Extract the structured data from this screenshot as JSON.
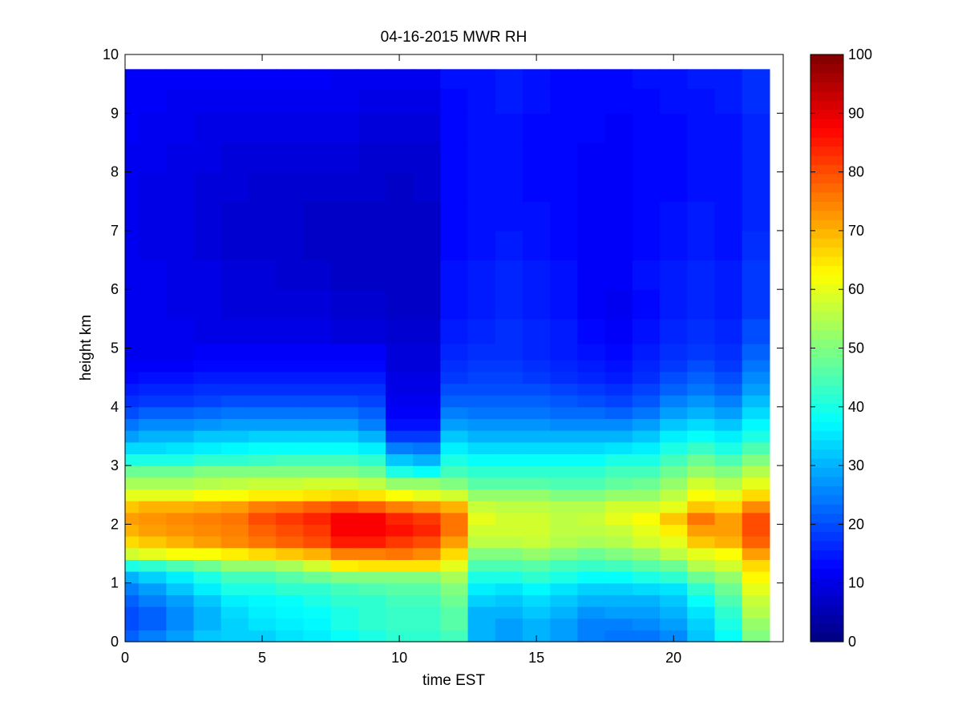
{
  "chart_data": {
    "type": "heatmap",
    "title": "04-16-2015 MWR RH",
    "xlabel": "time EST",
    "ylabel": "height km",
    "xlim": [
      0,
      24
    ],
    "ylim": [
      0,
      10
    ],
    "xticks": [
      0,
      5,
      10,
      15,
      20
    ],
    "yticks": [
      0,
      1,
      2,
      3,
      4,
      5,
      6,
      7,
      8,
      9,
      10
    ],
    "colorbar": {
      "colormap": "jet",
      "range": [
        0,
        100
      ],
      "ticks": [
        0,
        10,
        20,
        30,
        40,
        50,
        60,
        70,
        80,
        90,
        100
      ]
    },
    "time_hours": [
      0,
      1,
      2,
      3,
      4,
      5,
      6,
      7,
      8,
      9,
      10,
      11,
      12,
      13,
      14,
      15,
      16,
      17,
      18,
      19,
      20,
      21,
      22,
      23
    ],
    "data_extent": {
      "x": [
        0,
        23.5
      ],
      "y": [
        0,
        9.75
      ]
    },
    "heights_km": [
      0.1,
      0.3,
      0.5,
      0.7,
      0.9,
      1.1,
      1.3,
      1.5,
      1.7,
      1.9,
      2.1,
      2.3,
      2.5,
      2.7,
      2.9,
      3.1,
      3.3,
      3.5,
      3.7,
      3.9,
      4.1,
      4.3,
      4.5,
      4.7,
      4.9,
      5.25,
      5.75,
      6.25,
      6.75,
      7.25,
      7.75,
      8.25,
      8.75,
      9.25,
      9.6
    ],
    "rh_percent": [
      [
        22,
        25,
        28,
        32,
        33,
        33,
        35,
        36,
        38,
        40,
        42,
        42,
        44,
        30,
        28,
        30,
        28,
        25,
        24,
        24,
        26,
        32,
        38,
        50
      ],
      [
        20,
        22,
        26,
        30,
        33,
        35,
        36,
        37,
        40,
        42,
        43,
        43,
        46,
        30,
        28,
        30,
        28,
        25,
        25,
        26,
        28,
        33,
        40,
        52
      ],
      [
        20,
        22,
        26,
        30,
        34,
        36,
        37,
        38,
        40,
        42,
        43,
        43,
        46,
        30,
        30,
        32,
        30,
        27,
        28,
        28,
        30,
        35,
        42,
        55
      ],
      [
        22,
        25,
        28,
        32,
        36,
        37,
        38,
        40,
        42,
        42,
        44,
        44,
        48,
        33,
        32,
        34,
        32,
        30,
        30,
        30,
        32,
        38,
        45,
        57
      ],
      [
        25,
        28,
        32,
        36,
        40,
        40,
        42,
        42,
        44,
        45,
        46,
        46,
        50,
        36,
        35,
        37,
        35,
        33,
        33,
        34,
        35,
        42,
        48,
        60
      ],
      [
        30,
        33,
        36,
        40,
        44,
        44,
        46,
        48,
        50,
        50,
        50,
        50,
        54,
        40,
        40,
        42,
        40,
        38,
        38,
        40,
        42,
        48,
        52,
        63
      ],
      [
        40,
        42,
        45,
        48,
        52,
        52,
        54,
        58,
        64,
        65,
        65,
        65,
        60,
        45,
        45,
        46,
        44,
        43,
        44,
        46,
        48,
        55,
        58,
        66
      ],
      [
        58,
        60,
        62,
        62,
        64,
        66,
        68,
        70,
        75,
        75,
        76,
        74,
        66,
        50,
        50,
        52,
        50,
        48,
        50,
        52,
        56,
        60,
        62,
        72
      ],
      [
        66,
        68,
        70,
        72,
        74,
        76,
        78,
        80,
        85,
        85,
        82,
        80,
        72,
        56,
        56,
        57,
        55,
        54,
        55,
        58,
        60,
        68,
        70,
        78
      ],
      [
        70,
        72,
        73,
        74,
        75,
        78,
        80,
        82,
        88,
        88,
        86,
        84,
        76,
        58,
        58,
        58,
        56,
        56,
        57,
        60,
        64,
        72,
        72,
        80
      ],
      [
        72,
        73,
        74,
        75,
        76,
        80,
        82,
        84,
        88,
        88,
        84,
        82,
        76,
        60,
        58,
        58,
        56,
        57,
        60,
        62,
        68,
        76,
        72,
        80
      ],
      [
        68,
        70,
        70,
        71,
        72,
        75,
        76,
        78,
        80,
        78,
        75,
        73,
        70,
        57,
        56,
        56,
        55,
        55,
        58,
        58,
        60,
        68,
        66,
        74
      ],
      [
        60,
        60,
        60,
        62,
        62,
        64,
        64,
        65,
        66,
        65,
        62,
        60,
        58,
        52,
        52,
        52,
        50,
        50,
        52,
        52,
        56,
        62,
        60,
        66
      ],
      [
        54,
        54,
        54,
        55,
        56,
        57,
        57,
        58,
        58,
        56,
        52,
        52,
        50,
        46,
        46,
        46,
        45,
        45,
        47,
        48,
        52,
        58,
        55,
        60
      ],
      [
        48,
        48,
        48,
        50,
        50,
        50,
        50,
        50,
        50,
        48,
        40,
        38,
        44,
        42,
        42,
        42,
        42,
        42,
        44,
        44,
        48,
        52,
        50,
        55
      ],
      [
        40,
        40,
        40,
        42,
        42,
        43,
        44,
        44,
        44,
        42,
        32,
        30,
        40,
        38,
        38,
        38,
        38,
        38,
        40,
        40,
        44,
        48,
        45,
        50
      ],
      [
        34,
        34,
        35,
        36,
        37,
        38,
        38,
        38,
        38,
        36,
        25,
        24,
        36,
        34,
        34,
        34,
        34,
        34,
        35,
        36,
        40,
        43,
        40,
        45
      ],
      [
        28,
        30,
        30,
        32,
        32,
        33,
        33,
        33,
        33,
        30,
        18,
        18,
        32,
        30,
        30,
        30,
        30,
        30,
        30,
        32,
        36,
        38,
        36,
        40
      ],
      [
        24,
        26,
        26,
        27,
        28,
        28,
        28,
        28,
        28,
        25,
        14,
        14,
        28,
        27,
        27,
        27,
        26,
        26,
        26,
        28,
        32,
        34,
        32,
        37
      ],
      [
        20,
        22,
        22,
        23,
        24,
        24,
        24,
        24,
        24,
        22,
        12,
        12,
        25,
        24,
        24,
        24,
        23,
        23,
        22,
        24,
        28,
        30,
        28,
        34
      ],
      [
        17,
        18,
        18,
        19,
        20,
        20,
        20,
        20,
        20,
        19,
        11,
        11,
        22,
        22,
        22,
        22,
        21,
        20,
        19,
        21,
        25,
        27,
        25,
        31
      ],
      [
        15,
        16,
        16,
        17,
        17,
        17,
        17,
        17,
        17,
        17,
        10,
        10,
        20,
        20,
        20,
        20,
        19,
        18,
        17,
        19,
        22,
        24,
        22,
        28
      ],
      [
        13,
        14,
        14,
        15,
        15,
        15,
        15,
        15,
        15,
        15,
        10,
        10,
        18,
        19,
        19,
        18,
        17,
        16,
        15,
        17,
        20,
        22,
        20,
        26
      ],
      [
        12,
        12,
        12,
        13,
        13,
        13,
        13,
        13,
        13,
        13,
        9,
        9,
        17,
        18,
        18,
        17,
        16,
        15,
        14,
        16,
        18,
        20,
        18,
        24
      ],
      [
        11,
        11,
        11,
        12,
        12,
        12,
        12,
        12,
        12,
        12,
        9,
        9,
        16,
        17,
        17,
        16,
        15,
        14,
        13,
        15,
        17,
        18,
        17,
        22
      ],
      [
        11,
        11,
        11,
        10,
        10,
        10,
        10,
        10,
        9,
        9,
        8,
        8,
        15,
        16,
        17,
        16,
        15,
        13,
        12,
        14,
        16,
        17,
        16,
        20
      ],
      [
        11,
        11,
        10,
        10,
        9,
        9,
        9,
        9,
        8,
        8,
        7,
        7,
        14,
        15,
        16,
        15,
        14,
        12,
        11,
        13,
        15,
        16,
        15,
        18
      ],
      [
        11,
        11,
        10,
        10,
        9,
        9,
        8,
        8,
        7,
        7,
        7,
        7,
        14,
        15,
        16,
        15,
        14,
        12,
        12,
        14,
        15,
        16,
        15,
        18
      ],
      [
        11,
        10,
        10,
        9,
        8,
        8,
        8,
        7,
        7,
        7,
        7,
        7,
        13,
        14,
        15,
        14,
        13,
        12,
        12,
        13,
        14,
        15,
        14,
        17
      ],
      [
        11,
        10,
        10,
        9,
        8,
        8,
        8,
        7,
        7,
        7,
        7,
        7,
        13,
        14,
        14,
        14,
        13,
        12,
        12,
        13,
        14,
        15,
        14,
        16
      ],
      [
        11,
        10,
        10,
        9,
        9,
        8,
        8,
        8,
        8,
        8,
        7,
        8,
        13,
        14,
        14,
        13,
        13,
        12,
        12,
        13,
        13,
        14,
        14,
        16
      ],
      [
        11,
        11,
        10,
        10,
        9,
        9,
        9,
        9,
        9,
        8,
        8,
        8,
        13,
        14,
        14,
        13,
        13,
        12,
        12,
        13,
        13,
        14,
        14,
        16
      ],
      [
        12,
        11,
        11,
        10,
        10,
        10,
        10,
        10,
        10,
        9,
        9,
        9,
        13,
        14,
        14,
        13,
        13,
        13,
        12,
        13,
        13,
        14,
        14,
        16
      ],
      [
        12,
        12,
        11,
        11,
        11,
        11,
        11,
        11,
        11,
        10,
        10,
        10,
        13,
        14,
        15,
        14,
        13,
        13,
        13,
        13,
        14,
        14,
        15,
        17
      ],
      [
        12,
        12,
        12,
        12,
        12,
        12,
        12,
        12,
        11,
        11,
        11,
        11,
        14,
        14,
        15,
        14,
        13,
        13,
        13,
        14,
        14,
        15,
        15,
        17
      ]
    ]
  }
}
